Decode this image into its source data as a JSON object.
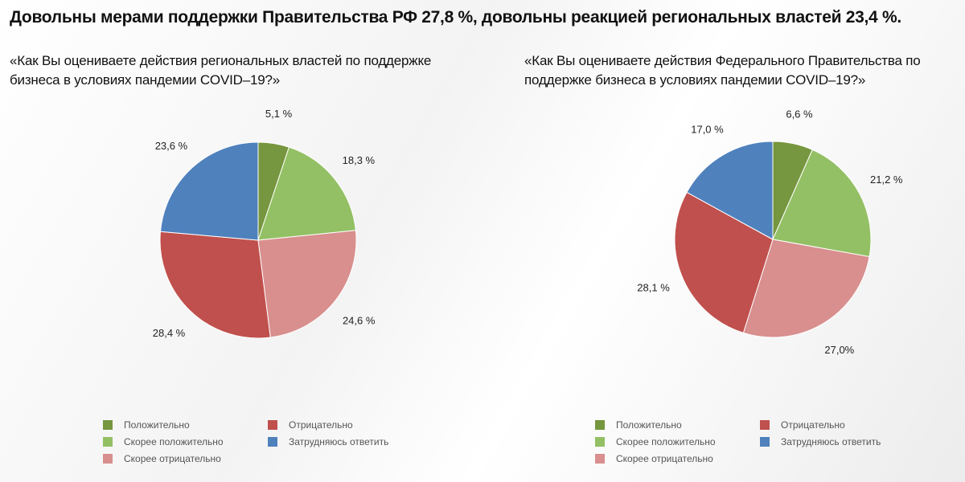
{
  "title": "Довольны мерами поддержки Правительства РФ 27,8 %, довольны реакцией региональных властей 23,4 %.",
  "chart_data": [
    {
      "type": "pie",
      "title": "«Как Вы оцениваете действия региональных властей по поддержке бизнеса в условиях пандемии COVID–19?»",
      "categories": [
        "Положительно",
        "Скорее положительно",
        "Скорее отрицательно",
        "Отрицательно",
        "Затрудняюсь ответить"
      ],
      "values": [
        5.1,
        18.3,
        24.6,
        28.4,
        23.6
      ],
      "data_labels": [
        "5,1 %",
        "18,3 %",
        "24,6 %",
        "28,4 %",
        "23,6 %"
      ],
      "colors": [
        "#76963f",
        "#93c064",
        "#d88f8e",
        "#c0504d",
        "#4f81bd"
      ],
      "legend": "bottom"
    },
    {
      "type": "pie",
      "title": "«Как Вы оцениваете действия Федерального Правительства по поддержке бизнеса в условиях пандемии COVID–19?»",
      "categories": [
        "Положительно",
        "Скорее положительно",
        "Скорее отрицательно",
        "Отрицательно",
        "Затрудняюсь ответить"
      ],
      "values": [
        6.6,
        21.2,
        27.0,
        28.1,
        17.0
      ],
      "data_labels": [
        "6,6 %",
        "21,2 %",
        "27,0%",
        "28,1 %",
        "17,0 %"
      ],
      "colors": [
        "#76963f",
        "#93c064",
        "#d88f8e",
        "#c0504d",
        "#4f81bd"
      ],
      "legend": "bottom"
    }
  ]
}
